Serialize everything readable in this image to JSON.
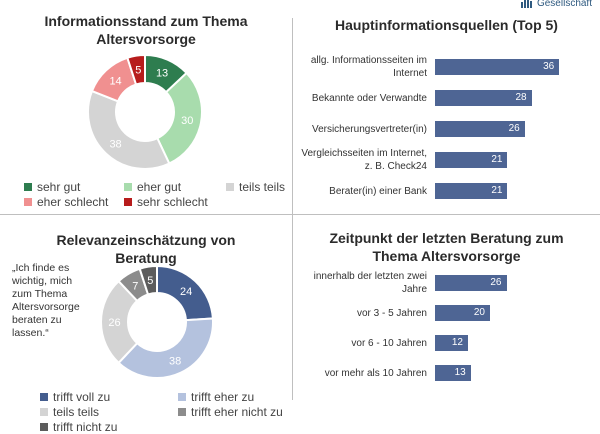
{
  "logo": {
    "text": "Gesellschaft"
  },
  "chart_data": [
    {
      "type": "pie",
      "title": "Informationsstand zum Thema Altersvorsorge",
      "labels": [
        "sehr gut",
        "eher gut",
        "teils teils",
        "eher schlecht",
        "sehr schlecht"
      ],
      "values": [
        13,
        30,
        38,
        14,
        5
      ],
      "colors": [
        "#2e7d4f",
        "#a8dcad",
        "#d4d4d4",
        "#f09090",
        "#b71c1c"
      ],
      "legend": "bottom"
    },
    {
      "type": "bar",
      "title": "Hauptinformationsquellen (Top 5)",
      "categories": [
        "allg. Informationsseiten im Internet",
        "Bekannte oder Verwandte",
        "Versicherungsvertreter(in)",
        "Vergleichsseiten im Internet, z. B. Check24",
        "Berater(in) einer Bank"
      ],
      "values": [
        36,
        28,
        26,
        21,
        21
      ],
      "color": "#4e6594"
    },
    {
      "type": "pie",
      "title": "Relevanzeinschätzung von Beratung",
      "annotation": "„Ich finde es wichtig, mich zum Thema Altersvorsorge beraten zu lassen.“",
      "labels": [
        "trifft voll zu",
        "trifft eher zu",
        "teils teils",
        "trifft eher nicht zu",
        "trifft nicht zu"
      ],
      "values": [
        24,
        38,
        26,
        7,
        5
      ],
      "colors": [
        "#445d8e",
        "#b4c2de",
        "#d4d4d4",
        "#8c8c8c",
        "#5c5c5c"
      ],
      "legend": "bottom"
    },
    {
      "type": "bar",
      "title": "Zeitpunkt der letzten Beratung zum Thema Altersvorsorge",
      "categories": [
        "innerhalb der letzten zwei Jahre",
        "vor 3 - 5 Jahren",
        "vor 6 - 10 Jahren",
        "vor mehr als 10 Jahren"
      ],
      "values": [
        26,
        20,
        12,
        13
      ],
      "color": "#4e6594"
    }
  ]
}
